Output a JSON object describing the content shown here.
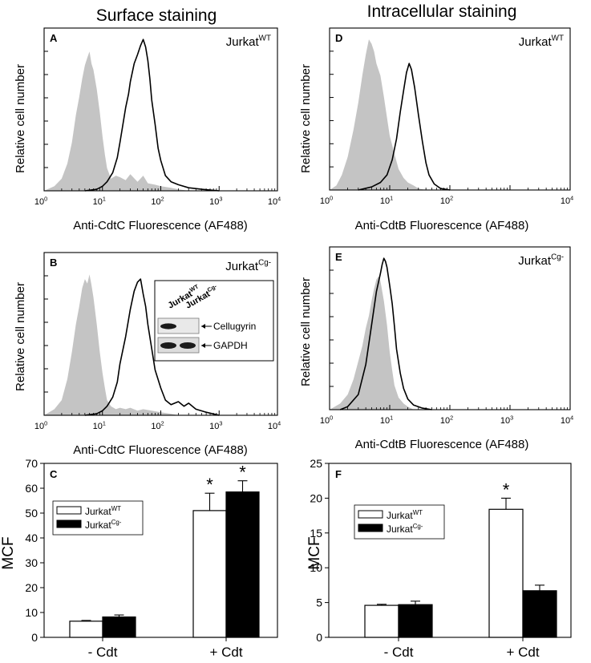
{
  "headings": {
    "left": "Surface staining",
    "right": "Intracellular staining"
  },
  "colors": {
    "control_fill": "#c4c4c4",
    "line": "#000000",
    "wt_bar": "#ffffff",
    "cg_bar": "#000000"
  },
  "chart_data": [
    {
      "id": "A",
      "type": "histogram",
      "panel_label": "A",
      "sample": {
        "base": "Jurkat",
        "sup": "WT"
      },
      "xlabel": "Anti-CdtC Fluorescence (AF488)",
      "ylabel": "Relative cell number",
      "xscale": "log",
      "xlim": [
        1,
        10000
      ],
      "xticks": [
        {
          "b": "10",
          "e": "0"
        },
        {
          "b": "10",
          "e": "1"
        },
        {
          "b": "10",
          "e": "2"
        },
        {
          "b": "10",
          "e": "3"
        },
        {
          "b": "10",
          "e": "4"
        }
      ],
      "series": [
        {
          "name": "control (gray fill)",
          "style": "fill",
          "points": [
            [
              1,
              0
            ],
            [
              1.5,
              0.03
            ],
            [
              2,
              0.08
            ],
            [
              2.5,
              0.18
            ],
            [
              3,
              0.32
            ],
            [
              3.5,
              0.5
            ],
            [
              4,
              0.62
            ],
            [
              4.5,
              0.74
            ],
            [
              5,
              0.83
            ],
            [
              5.5,
              0.88
            ],
            [
              6,
              0.92
            ],
            [
              6.5,
              0.84
            ],
            [
              7,
              0.8
            ],
            [
              8,
              0.67
            ],
            [
              9,
              0.52
            ],
            [
              10,
              0.36
            ],
            [
              11,
              0.24
            ],
            [
              12,
              0.15
            ],
            [
              14,
              0.08
            ],
            [
              17,
              0.1
            ],
            [
              20,
              0.09
            ],
            [
              25,
              0.07
            ],
            [
              30,
              0.11
            ],
            [
              40,
              0.06
            ],
            [
              50,
              0.1
            ],
            [
              60,
              0.05
            ],
            [
              80,
              0.04
            ],
            [
              100,
              0.03
            ],
            [
              150,
              0.02
            ],
            [
              200,
              0.01
            ],
            [
              300,
              0
            ]
          ]
        },
        {
          "name": "anti-Cdt (black line)",
          "style": "line",
          "points": [
            [
              5,
              0
            ],
            [
              8,
              0.01
            ],
            [
              10,
              0.03
            ],
            [
              12,
              0.06
            ],
            [
              15,
              0.12
            ],
            [
              18,
              0.22
            ],
            [
              20,
              0.32
            ],
            [
              22,
              0.42
            ],
            [
              25,
              0.55
            ],
            [
              28,
              0.64
            ],
            [
              30,
              0.72
            ],
            [
              35,
              0.84
            ],
            [
              40,
              0.9
            ],
            [
              45,
              0.96
            ],
            [
              50,
              1.0
            ],
            [
              55,
              0.95
            ],
            [
              60,
              0.86
            ],
            [
              65,
              0.74
            ],
            [
              70,
              0.6
            ],
            [
              80,
              0.44
            ],
            [
              90,
              0.28
            ],
            [
              100,
              0.2
            ],
            [
              120,
              0.1
            ],
            [
              150,
              0.06
            ],
            [
              200,
              0.04
            ],
            [
              300,
              0.02
            ],
            [
              500,
              0.01
            ],
            [
              1000,
              0
            ]
          ]
        }
      ]
    },
    {
      "id": "B",
      "type": "histogram",
      "panel_label": "B",
      "sample": {
        "base": "Jurkat",
        "sup": "Cg-"
      },
      "xlabel": "Anti-CdtC Fluorescence (AF488)",
      "ylabel": "Relative cell number",
      "xscale": "log",
      "xlim": [
        1,
        10000
      ],
      "xticks": [
        {
          "b": "10",
          "e": "0"
        },
        {
          "b": "10",
          "e": "1"
        },
        {
          "b": "10",
          "e": "2"
        },
        {
          "b": "10",
          "e": "3"
        },
        {
          "b": "10",
          "e": "4"
        }
      ],
      "inset": {
        "lanes": [
          {
            "base": "Jurkat",
            "sup": "WT"
          },
          {
            "base": "Jurkat",
            "sup": "Cg-"
          }
        ],
        "bands": [
          "Cellugyrin",
          "GAPDH"
        ]
      },
      "series": [
        {
          "name": "control (gray fill)",
          "style": "fill",
          "points": [
            [
              1,
              0
            ],
            [
              1.5,
              0.04
            ],
            [
              2,
              0.1
            ],
            [
              2.5,
              0.24
            ],
            [
              3,
              0.42
            ],
            [
              3.5,
              0.6
            ],
            [
              4,
              0.72
            ],
            [
              4.5,
              0.84
            ],
            [
              5,
              0.9
            ],
            [
              5.5,
              0.87
            ],
            [
              6,
              0.93
            ],
            [
              6.5,
              0.86
            ],
            [
              7,
              0.78
            ],
            [
              8,
              0.6
            ],
            [
              9,
              0.42
            ],
            [
              10,
              0.28
            ],
            [
              11,
              0.18
            ],
            [
              12,
              0.1
            ],
            [
              14,
              0.06
            ],
            [
              17,
              0.04
            ],
            [
              20,
              0.05
            ],
            [
              25,
              0.04
            ],
            [
              30,
              0.05
            ],
            [
              40,
              0.03
            ],
            [
              50,
              0.04
            ],
            [
              70,
              0.03
            ],
            [
              100,
              0.02
            ],
            [
              150,
              0.01
            ],
            [
              200,
              0
            ]
          ]
        },
        {
          "name": "anti-Cdt (black line)",
          "style": "line",
          "points": [
            [
              5,
              0
            ],
            [
              8,
              0.01
            ],
            [
              10,
              0.03
            ],
            [
              12,
              0.06
            ],
            [
              15,
              0.12
            ],
            [
              18,
              0.22
            ],
            [
              20,
              0.34
            ],
            [
              25,
              0.52
            ],
            [
              30,
              0.7
            ],
            [
              35,
              0.82
            ],
            [
              40,
              0.88
            ],
            [
              45,
              0.9
            ],
            [
              50,
              0.8
            ],
            [
              55,
              0.72
            ],
            [
              60,
              0.6
            ],
            [
              70,
              0.44
            ],
            [
              80,
              0.3
            ],
            [
              100,
              0.18
            ],
            [
              120,
              0.1
            ],
            [
              150,
              0.07
            ],
            [
              200,
              0.09
            ],
            [
              250,
              0.06
            ],
            [
              300,
              0.08
            ],
            [
              400,
              0.04
            ],
            [
              600,
              0.02
            ],
            [
              1000,
              0
            ]
          ]
        }
      ]
    },
    {
      "id": "D",
      "type": "histogram",
      "panel_label": "D",
      "sample": {
        "base": "Jurkat",
        "sup": "WT"
      },
      "xlabel": "Anti-CdtB Fluorescence (AF488)",
      "ylabel": "Relative cell number",
      "xscale": "log",
      "xlim": [
        1,
        10000
      ],
      "xticks": [
        {
          "b": "10",
          "e": "0"
        },
        {
          "b": "10",
          "e": "1"
        },
        {
          "b": "10",
          "e": "2"
        },
        {
          "b": "10",
          "e": "4"
        }
      ],
      "series": [
        {
          "name": "control (gray fill)",
          "style": "fill",
          "points": [
            [
              1,
              0
            ],
            [
              1.3,
              0.03
            ],
            [
              1.6,
              0.1
            ],
            [
              2,
              0.22
            ],
            [
              2.5,
              0.4
            ],
            [
              3,
              0.58
            ],
            [
              3.5,
              0.76
            ],
            [
              4,
              0.9
            ],
            [
              4.5,
              1.0
            ],
            [
              5,
              0.97
            ],
            [
              5.5,
              0.92
            ],
            [
              6,
              0.84
            ],
            [
              7,
              0.76
            ],
            [
              8,
              0.62
            ],
            [
              9,
              0.48
            ],
            [
              10,
              0.36
            ],
            [
              12,
              0.24
            ],
            [
              14,
              0.14
            ],
            [
              17,
              0.08
            ],
            [
              20,
              0.05
            ],
            [
              25,
              0.03
            ],
            [
              30,
              0.01
            ],
            [
              40,
              0
            ]
          ]
        },
        {
          "name": "anti-Cdt (black line)",
          "style": "line",
          "points": [
            [
              3,
              0
            ],
            [
              5,
              0.02
            ],
            [
              7,
              0.05
            ],
            [
              9,
              0.1
            ],
            [
              11,
              0.2
            ],
            [
              13,
              0.34
            ],
            [
              15,
              0.52
            ],
            [
              17,
              0.66
            ],
            [
              19,
              0.78
            ],
            [
              21,
              0.84
            ],
            [
              23,
              0.8
            ],
            [
              26,
              0.68
            ],
            [
              30,
              0.5
            ],
            [
              35,
              0.32
            ],
            [
              40,
              0.18
            ],
            [
              45,
              0.1
            ],
            [
              55,
              0.04
            ],
            [
              70,
              0.01
            ],
            [
              100,
              0
            ]
          ]
        }
      ]
    },
    {
      "id": "E",
      "type": "histogram",
      "panel_label": "E",
      "sample": {
        "base": "Jurkat",
        "sup": "Cg-"
      },
      "xlabel": "Anti-CdtB Fluorescence (AF488)",
      "ylabel": "Relative cell number",
      "xscale": "log",
      "xlim": [
        1,
        10000
      ],
      "xticks": [
        {
          "b": "10",
          "e": "0"
        },
        {
          "b": "10",
          "e": "1"
        },
        {
          "b": "10",
          "e": "2"
        },
        {
          "b": "10",
          "e": "3"
        },
        {
          "b": "10",
          "e": "4"
        }
      ],
      "series": [
        {
          "name": "control (gray fill)",
          "style": "fill",
          "points": [
            [
              1,
              0
            ],
            [
              1.5,
              0.04
            ],
            [
              2,
              0.1
            ],
            [
              2.5,
              0.2
            ],
            [
              3,
              0.32
            ],
            [
              3.5,
              0.42
            ],
            [
              4,
              0.54
            ],
            [
              4.5,
              0.62
            ],
            [
              5,
              0.72
            ],
            [
              5.5,
              0.8
            ],
            [
              6,
              0.86
            ],
            [
              6.5,
              0.88
            ],
            [
              7,
              0.85
            ],
            [
              8,
              0.72
            ],
            [
              9,
              0.56
            ],
            [
              10,
              0.38
            ],
            [
              11,
              0.26
            ],
            [
              12,
              0.16
            ],
            [
              14,
              0.08
            ],
            [
              17,
              0.04
            ],
            [
              20,
              0.02
            ],
            [
              25,
              0
            ]
          ]
        },
        {
          "name": "anti-Cdt (black line)",
          "style": "line",
          "points": [
            [
              1.5,
              0
            ],
            [
              2,
              0.02
            ],
            [
              3,
              0.1
            ],
            [
              4,
              0.3
            ],
            [
              5,
              0.56
            ],
            [
              6,
              0.78
            ],
            [
              7,
              0.9
            ],
            [
              7.5,
              0.96
            ],
            [
              8,
              1.0
            ],
            [
              8.5,
              0.98
            ],
            [
              9,
              0.94
            ],
            [
              10,
              0.82
            ],
            [
              11,
              0.7
            ],
            [
              12,
              0.55
            ],
            [
              13,
              0.4
            ],
            [
              15,
              0.24
            ],
            [
              17,
              0.14
            ],
            [
              20,
              0.07
            ],
            [
              25,
              0.03
            ],
            [
              35,
              0.01
            ],
            [
              50,
              0
            ]
          ]
        }
      ]
    },
    {
      "id": "C",
      "type": "bar",
      "panel_label": "C",
      "categories": [
        "- Cdt",
        "+ Cdt"
      ],
      "ylabel": "MCF",
      "ylim": [
        0,
        70
      ],
      "yticks": [
        0,
        10,
        20,
        30,
        40,
        50,
        60,
        70
      ],
      "series": [
        {
          "name": {
            "base": "Jurkat",
            "sup": "WT"
          },
          "values": [
            6.5,
            51
          ],
          "errors": [
            0.3,
            7
          ]
        },
        {
          "name": {
            "base": "Jurkat",
            "sup": "Cg-"
          },
          "values": [
            8.2,
            58.5
          ],
          "errors": [
            0.8,
            4.5
          ]
        }
      ],
      "significance": [
        {
          "category": 1,
          "series": 0,
          "label": "*"
        },
        {
          "category": 1,
          "series": 1,
          "label": "*"
        }
      ]
    },
    {
      "id": "F",
      "type": "bar",
      "panel_label": "F",
      "categories": [
        "- Cdt",
        "+ Cdt"
      ],
      "ylabel": "MCF",
      "ylim": [
        0,
        25
      ],
      "yticks": [
        0,
        5,
        10,
        15,
        20,
        25
      ],
      "series": [
        {
          "name": {
            "base": "Jurkat",
            "sup": "WT"
          },
          "values": [
            4.6,
            18.4
          ],
          "errors": [
            0.15,
            1.6
          ]
        },
        {
          "name": {
            "base": "Jurkat",
            "sup": "Cg-"
          },
          "values": [
            4.7,
            6.7
          ],
          "errors": [
            0.5,
            0.8
          ]
        }
      ],
      "significance": [
        {
          "category": 1,
          "series": 0,
          "label": "*"
        }
      ]
    }
  ]
}
